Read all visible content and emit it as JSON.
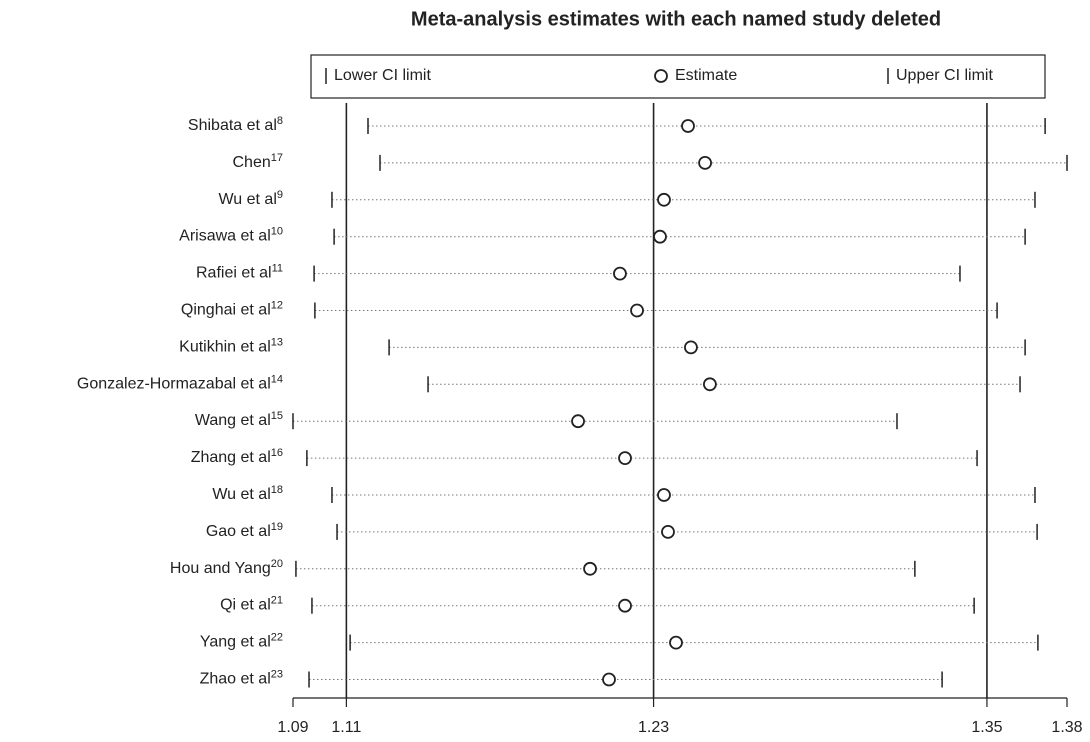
{
  "chart_data": {
    "type": "ci_plot",
    "title": "Meta-analysis estimates with each named study deleted",
    "categories": [
      "Shibata et al",
      "Chen",
      "Wu et al",
      "Arisawa et al",
      "Rafiei et al",
      "Qinghai et al",
      "Kutikhin et al",
      "Gonzalez-Hormazabal et al",
      "Wang et al",
      "Zhang et al",
      "Wu et al",
      "Gao et al",
      "Hou and Yang",
      "Qi et al",
      "Yang et al",
      "Zhao et al"
    ],
    "refs": [
      "8",
      "17",
      "9",
      "10",
      "11",
      "12",
      "13",
      "14",
      "15",
      "16",
      "18",
      "19",
      "20",
      "21",
      "22",
      "23"
    ],
    "series": [
      {
        "name": "Lower CI limit",
        "color": "#222222",
        "values": [
          1.1181,
          1.1226,
          1.1046,
          1.1054,
          1.0979,
          1.0982,
          1.126,
          1.1406,
          1.09,
          1.0952,
          1.1046,
          1.1065,
          1.0911,
          1.0971,
          1.1114,
          1.096
        ]
      },
      {
        "name": "Estimate",
        "color": "#222222",
        "values": [
          1.238,
          1.2444,
          1.229,
          1.2275,
          1.2125,
          1.2189,
          1.2391,
          1.2462,
          1.1968,
          1.2144,
          1.229,
          1.2305,
          1.2013,
          1.2144,
          1.2335,
          1.2084
        ]
      },
      {
        "name": "Upper CI limit",
        "color": "#222222",
        "values": [
          1.3718,
          1.38,
          1.368,
          1.3643,
          1.3399,
          1.3538,
          1.3643,
          1.3624,
          1.3163,
          1.3463,
          1.368,
          1.3688,
          1.323,
          1.3452,
          1.3691,
          1.3332
        ]
      }
    ],
    "xlim": [
      1.09,
      1.38
    ],
    "xticks": [
      1.09,
      1.11,
      {
        "value": 1.2251,
        "label": "1.23"
      },
      1.35,
      1.38
    ],
    "vlines": [
      1.11,
      1.2251,
      1.35
    ]
  }
}
